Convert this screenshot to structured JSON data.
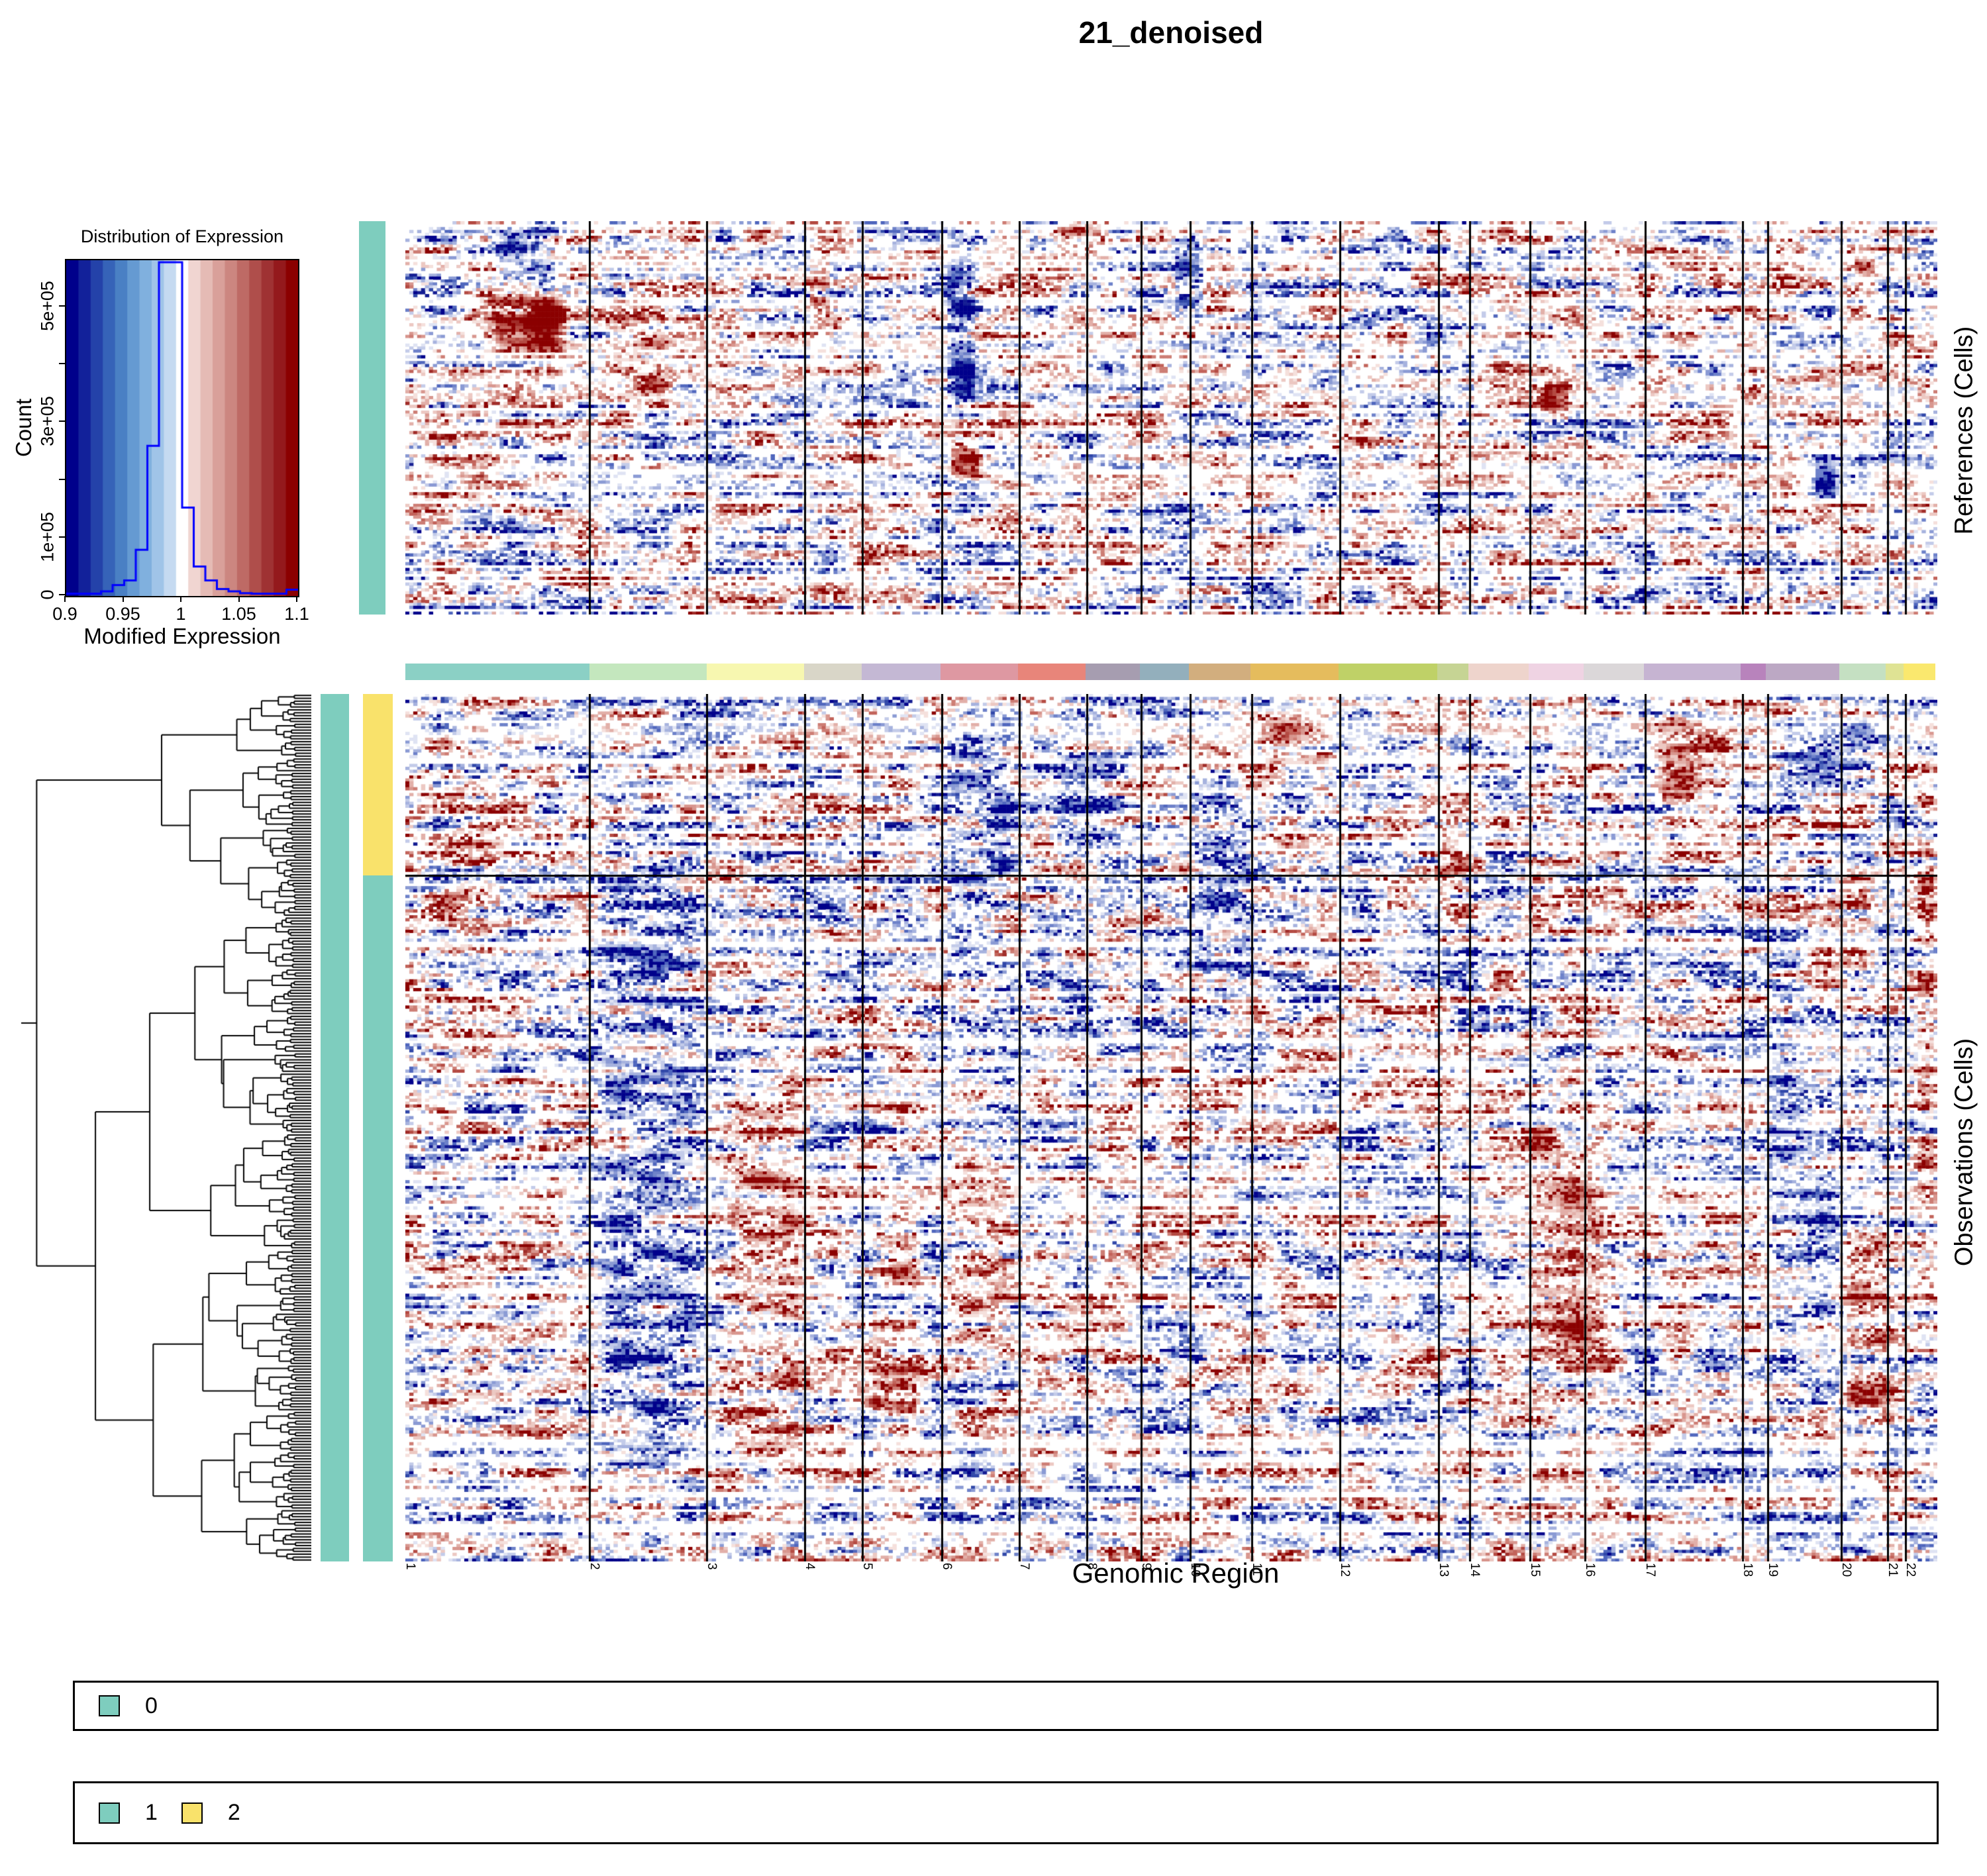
{
  "title": "21_denoised",
  "panels": {
    "references_label": "References (Cells)",
    "observations_label": "Observations (Cells)"
  },
  "genome": {
    "axis_label": "Genomic Region",
    "chromosomes": [
      {
        "label": "1",
        "width": 0.1203,
        "color": "#8BD0C5"
      },
      {
        "label": "2",
        "width": 0.0766,
        "color": "#C4E7BE"
      },
      {
        "label": "3",
        "width": 0.0636,
        "color": "#F7F7B0"
      },
      {
        "label": "4",
        "width": 0.0376,
        "color": "#D9D6C8"
      },
      {
        "label": "5",
        "width": 0.0519,
        "color": "#C4B8D4"
      },
      {
        "label": "6",
        "width": 0.0506,
        "color": "#DE98A2"
      },
      {
        "label": "7",
        "width": 0.0441,
        "color": "#E8857A"
      },
      {
        "label": "8",
        "width": 0.0355,
        "color": "#A69DB0"
      },
      {
        "label": "9",
        "width": 0.032,
        "color": "#93AFBC"
      },
      {
        "label": "10",
        "width": 0.0402,
        "color": "#D2AE7E"
      },
      {
        "label": "11",
        "width": 0.0575,
        "color": "#E5BC5D"
      },
      {
        "label": "12",
        "width": 0.0645,
        "color": "#BFD167"
      },
      {
        "label": "13",
        "width": 0.0203,
        "color": "#C6D494"
      },
      {
        "label": "14",
        "width": 0.0394,
        "color": "#EED4CC"
      },
      {
        "label": "15",
        "width": 0.0359,
        "color": "#EFD3E3"
      },
      {
        "label": "16",
        "width": 0.0394,
        "color": "#DBD7D9"
      },
      {
        "label": "17",
        "width": 0.0636,
        "color": "#C6B4D2"
      },
      {
        "label": "18",
        "width": 0.0164,
        "color": "#B883BC"
      },
      {
        "label": "19",
        "width": 0.048,
        "color": "#BCA8C4"
      },
      {
        "label": "20",
        "width": 0.0303,
        "color": "#C5E0C2"
      },
      {
        "label": "21",
        "width": 0.0117,
        "color": "#DFE394"
      },
      {
        "label": "22",
        "width": 0.0206,
        "color": "#FAE86E"
      }
    ]
  },
  "expression_legend": {
    "title": "Distribution of Expression",
    "xlabel": "Modified Expression",
    "ylabel": "Count",
    "x_range": [
      0.9,
      1.1
    ],
    "y_max": 581500,
    "line_color": "#0000FF",
    "x_ticks": [
      {
        "value": 0.9,
        "label": "0.9"
      },
      {
        "value": 0.95,
        "label": "0.95"
      },
      {
        "value": 1.0,
        "label": "1"
      },
      {
        "value": 1.05,
        "label": "1.05"
      },
      {
        "value": 1.1,
        "label": "1.1"
      }
    ],
    "y_ticks": [
      {
        "value": 0,
        "label": "0"
      },
      {
        "value": 100000,
        "label": "1e+05"
      },
      {
        "value": 200000,
        "label": ""
      },
      {
        "value": 300000,
        "label": "3e+05"
      },
      {
        "value": 400000,
        "label": ""
      },
      {
        "value": 500000,
        "label": "5e+05"
      }
    ],
    "scale_bands": [
      "#00008B",
      "#12219A",
      "#2442A9",
      "#3663B8",
      "#4A80C4",
      "#659AD2",
      "#80B0DE",
      "#A0C4E8",
      "#C5DAF1",
      "#FFFFFF",
      "#F0D5D1",
      "#E5BBB5",
      "#D9A09A",
      "#CC8680",
      "#BE6A65",
      "#AF4E4B",
      "#9F3233",
      "#94191C",
      "#8B0000"
    ]
  },
  "chart_data": [
    {
      "type": "area",
      "name": "expression_histogram",
      "title": "Distribution of Expression",
      "xlabel": "Modified Expression",
      "ylabel": "Count",
      "x_range": [
        0.9,
        1.1
      ],
      "ylim": [
        0,
        581500
      ],
      "bin_start": 0.9,
      "bin_width": 0.01,
      "counts": [
        4000,
        4000,
        4000,
        8000,
        19000,
        27000,
        80000,
        260000,
        578000,
        578000,
        153000,
        51000,
        27000,
        12000,
        8000,
        5000,
        4000,
        4000,
        4000,
        11000
      ]
    },
    {
      "type": "heatmap",
      "name": "References (Cells)",
      "value_range": [
        0.9,
        1.1
      ],
      "colormap": "darkblue-white-darkred",
      "columns": "genomic regions, chromosomes 1-22",
      "rows_approx": 140,
      "row_annotation_group": "0"
    },
    {
      "type": "heatmap",
      "name": "Observations (Cells)",
      "value_range": [
        0.9,
        1.1
      ],
      "colormap": "darkblue-white-darkred",
      "columns": "genomic regions, chromosomes 1-22",
      "rows_approx": 300,
      "clustered": true,
      "row_groups": [
        {
          "label": "2",
          "fraction": 0.209
        },
        {
          "label": "1",
          "fraction": 0.791
        }
      ]
    }
  ],
  "annotations": {
    "references_group": {
      "label": "0",
      "color": "#7ECDBE"
    },
    "observations_sample_bar_color": "#7ECDBE",
    "observations_groups": [
      {
        "label": "2",
        "color": "#F9E26B",
        "fraction": 0.209
      },
      {
        "label": "1",
        "color": "#7ECDBE",
        "fraction": 0.791
      }
    ]
  },
  "legends": [
    {
      "items": [
        {
          "label": "0",
          "color": "#7ECDBE"
        }
      ]
    },
    {
      "items": [
        {
          "label": "1",
          "color": "#7ECDBE"
        },
        {
          "label": "2",
          "color": "#F9E26B"
        }
      ]
    }
  ],
  "render": {
    "seeds": {
      "references": 42,
      "observations": 1337,
      "dendrogram": 7
    },
    "heatmap_palette": {
      "blues": [
        "#dfe3f3",
        "#c3cbe9",
        "#a6b2de",
        "#8a9ad4",
        "#6d81c9",
        "#4f66bd",
        "#3047a8",
        "#131c92",
        "#00008b"
      ],
      "reds": [
        "#f5e0dc",
        "#ecc8c2",
        "#e2afa8",
        "#d8968e",
        "#cd7d74",
        "#c2635a",
        "#b44a42",
        "#a02c28",
        "#8b0000"
      ]
    },
    "hotspots_references": [
      {
        "x": [
          0.055,
          0.1
        ],
        "y": [
          0.0,
          0.2
        ],
        "v": -0.55
      },
      {
        "x": [
          0.05,
          0.108
        ],
        "y": [
          0.17,
          0.34
        ],
        "v": 0.95
      },
      {
        "x": [
          0.125,
          0.175
        ],
        "y": [
          0.22,
          0.5
        ],
        "v": 0.4
      },
      {
        "x": [
          0.352,
          0.374
        ],
        "y": [
          0.03,
          0.52
        ],
        "v": -0.75
      },
      {
        "x": [
          0.353,
          0.378
        ],
        "y": [
          0.55,
          0.66
        ],
        "v": 0.9
      },
      {
        "x": [
          0.5,
          0.522
        ],
        "y": [
          0.0,
          0.28
        ],
        "v": -0.6
      },
      {
        "x": [
          0.262,
          0.278
        ],
        "y": [
          0.08,
          0.24
        ],
        "v": 0.55
      },
      {
        "x": [
          0.42,
          0.465
        ],
        "y": [
          0.0,
          0.09
        ],
        "v": 0.5
      },
      {
        "x": [
          0.74,
          0.762
        ],
        "y": [
          0.4,
          0.52
        ],
        "v": 0.65
      },
      {
        "x": [
          0.944,
          0.962
        ],
        "y": [
          0.08,
          0.18
        ],
        "v": 0.6
      },
      {
        "x": [
          0.918,
          0.936
        ],
        "y": [
          0.6,
          0.72
        ],
        "v": -0.6
      },
      {
        "x": [
          0.8,
          0.825
        ],
        "y": [
          0.33,
          0.44
        ],
        "v": 0.45
      },
      {
        "x": [
          0.6,
          0.64
        ],
        "y": [
          0.45,
          0.6
        ],
        "v": 0.35
      },
      {
        "x": [
          0.285,
          0.31
        ],
        "y": [
          0.55,
          0.75
        ],
        "v": 0.35
      }
    ],
    "hotspots_observations": [
      {
        "x": [
          0.12,
          0.2
        ],
        "y": [
          0.1,
          1.0
        ],
        "v": -0.42
      },
      {
        "x": [
          0.205,
          0.265
        ],
        "y": [
          0.35,
          0.97
        ],
        "v": 0.45
      },
      {
        "x": [
          0.35,
          0.4
        ],
        "y": [
          0.0,
          0.34
        ],
        "v": -0.5
      },
      {
        "x": [
          0.345,
          0.4
        ],
        "y": [
          0.52,
          0.78
        ],
        "v": 0.38
      },
      {
        "x": [
          0.51,
          0.556
        ],
        "y": [
          0.1,
          0.36
        ],
        "v": -0.45
      },
      {
        "x": [
          0.555,
          0.61
        ],
        "y": [
          0.02,
          0.12
        ],
        "v": 0.5
      },
      {
        "x": [
          0.81,
          0.872
        ],
        "y": [
          0.02,
          0.13
        ],
        "v": 0.55
      },
      {
        "x": [
          0.888,
          0.97
        ],
        "y": [
          0.03,
          0.13
        ],
        "v": -0.55
      },
      {
        "x": [
          0.725,
          0.79
        ],
        "y": [
          0.45,
          0.82
        ],
        "v": 0.45
      },
      {
        "x": [
          0.885,
          0.94
        ],
        "y": [
          0.35,
          0.78
        ],
        "v": -0.4
      },
      {
        "x": [
          0.937,
          0.972
        ],
        "y": [
          0.55,
          0.88
        ],
        "v": 0.4
      },
      {
        "x": [
          0.672,
          0.695
        ],
        "y": [
          0.1,
          0.32
        ],
        "v": 0.4
      },
      {
        "x": [
          0.985,
          1.0
        ],
        "y": [
          0.0,
          0.65
        ],
        "v": 0.35
      },
      {
        "x": [
          0.02,
          0.065
        ],
        "y": [
          0.08,
          0.32
        ],
        "v": 0.3
      },
      {
        "x": [
          0.42,
          0.47
        ],
        "y": [
          0.05,
          0.2
        ],
        "v": -0.4
      },
      {
        "x": [
          0.3,
          0.34
        ],
        "y": [
          0.55,
          0.9
        ],
        "v": 0.35
      }
    ]
  }
}
